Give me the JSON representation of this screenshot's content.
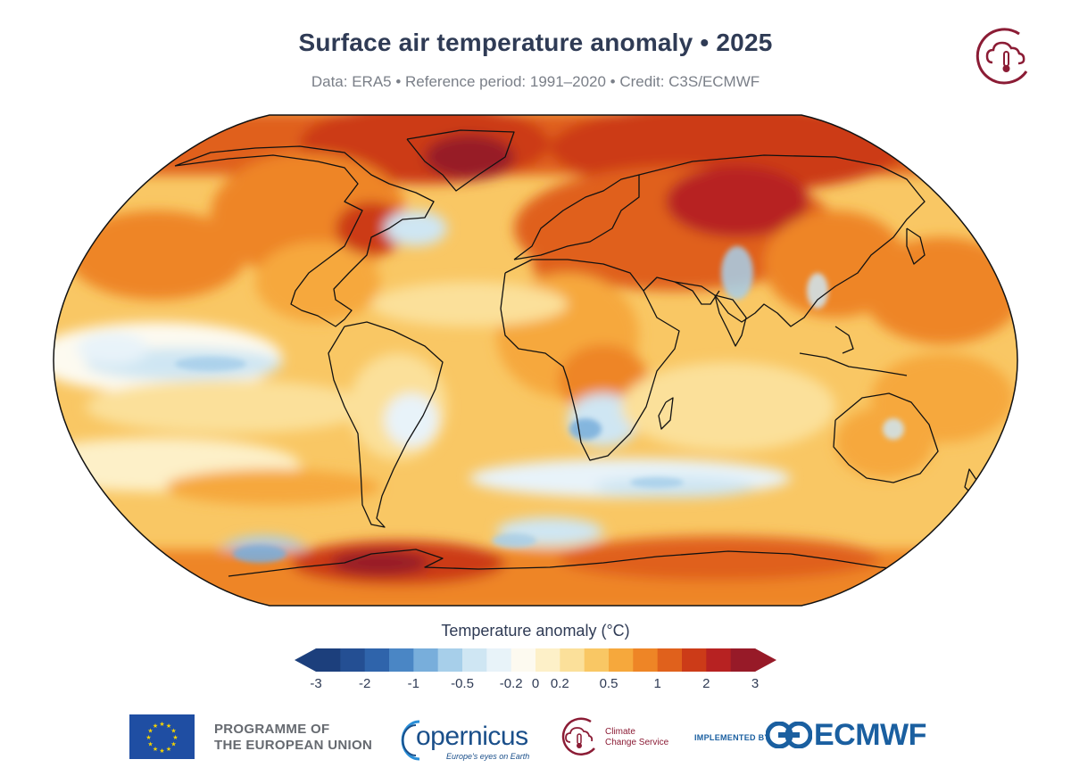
{
  "header": {
    "title": "Surface air temperature anomaly • 2025",
    "subtitle": "Data: ERA5 • Reference period: 1991–2020 • Credit: C3S/ECMWF"
  },
  "map": {
    "projection": "Robinson",
    "variable": "Surface air temperature anomaly",
    "unit": "°C",
    "reference_period": "1991–2020"
  },
  "legend": {
    "title": "Temperature anomaly (°C)",
    "tick_labels": [
      "-3",
      "-2",
      "-1",
      "-0.5",
      "-0.2",
      "0",
      "0.2",
      "0.5",
      "1",
      "2",
      "3"
    ],
    "colors": [
      "#1c3f7c",
      "#244f93",
      "#2f64ab",
      "#4a86c5",
      "#78aedb",
      "#a7cfea",
      "#cfe6f3",
      "#e8f3f9",
      "#fdfaf0",
      "#fdf0c8",
      "#fbe09a",
      "#f9c764",
      "#f6a83c",
      "#ee8526",
      "#e0611c",
      "#cc3b18",
      "#b72222",
      "#971a28"
    ],
    "extend": "both"
  },
  "footer": {
    "eu_text_line1": "PROGRAMME OF",
    "eu_text_line2": "THE EUROPEAN UNION",
    "copernicus_word": "opernicus",
    "copernicus_tagline": "Europe's eyes on Earth",
    "c3s_line1": "Climate",
    "c3s_line2": "Change Service",
    "implemented_by": "IMPLEMENTED BY",
    "ecmwf": "ECMWF"
  },
  "colors": {
    "title": "#2f3b55",
    "c3s_brand": "#8b1c35",
    "ecmwf_brand": "#1a5fa0",
    "eu_blue": "#1f4ea3",
    "eu_gold": "#f5d400"
  },
  "icons": [
    "c3s-logo-icon",
    "eu-flag-icon",
    "copernicus-logo-icon",
    "ecmwf-logo-icon"
  ]
}
